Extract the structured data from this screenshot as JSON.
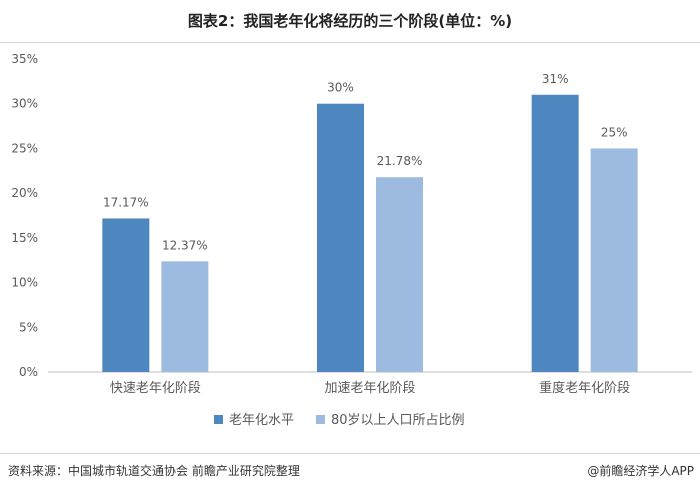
{
  "title": "图表2：我国老年化将经历的三个阶段(单位：%)",
  "colors": {
    "series1": "#4e87c0",
    "series2": "#9dbbe0",
    "axis": "#bfbfbf",
    "text": "#595959"
  },
  "chart_data": {
    "type": "bar",
    "categories": [
      "快速老年化阶段",
      "加速老年化阶段",
      "重度老年化阶段"
    ],
    "series": [
      {
        "name": "老年化水平",
        "values": [
          17.17,
          30,
          31
        ],
        "labels": [
          "17.17%",
          "30%",
          "31%"
        ]
      },
      {
        "name": "80岁以上人口所占比例",
        "values": [
          12.37,
          21.78,
          25
        ],
        "labels": [
          "12.37%",
          "21.78%",
          "25%"
        ]
      }
    ],
    "ylim": [
      0,
      35
    ],
    "yticks": [
      "0%",
      "5%",
      "10%",
      "15%",
      "20%",
      "25%",
      "30%",
      "35%"
    ],
    "grid": false,
    "legend_position": "bottom"
  },
  "footer": {
    "source": "资料来源：中国城市轨道交通协会 前瞻产业研究院整理",
    "credit": "@前瞻经济学人APP"
  }
}
